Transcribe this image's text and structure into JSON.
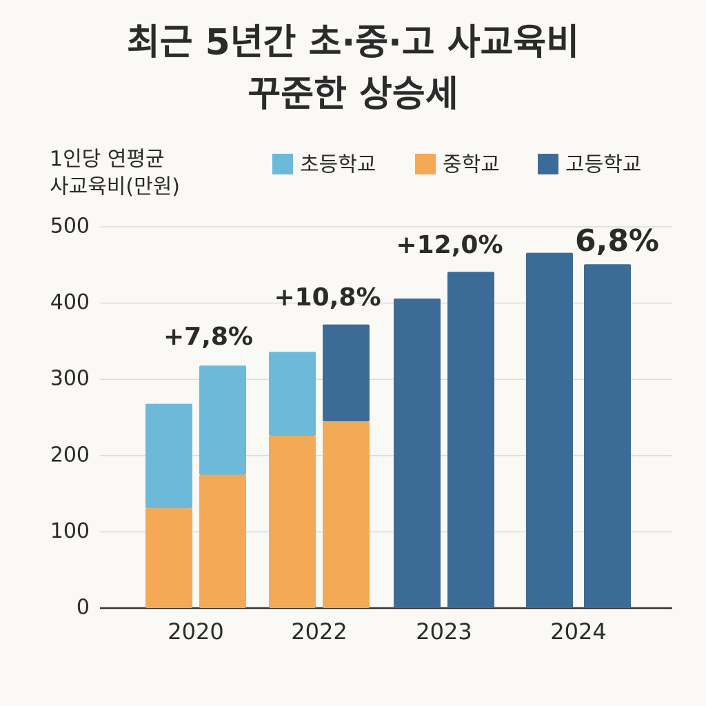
{
  "chart_data": {
    "type": "bar",
    "stacked": true,
    "title": [
      "최근 5년간 초·중·고 사교육비",
      "꾸준한 상승세"
    ],
    "y_label": [
      "1인당 연평균",
      "사교육비(만원)"
    ],
    "categories": [
      "2020",
      null,
      "2022",
      null,
      "2023",
      null,
      "2024",
      null
    ],
    "series": [
      {
        "name": "초등학교",
        "color": "#6db9da",
        "values": [
          137,
          143,
          110,
          null,
          null,
          null,
          null,
          null
        ]
      },
      {
        "name": "중학교",
        "color": "#f4a956",
        "values": [
          131,
          175,
          226,
          245,
          null,
          null,
          null,
          null
        ]
      },
      {
        "name": "고등학교",
        "color": "#3d6b97",
        "values": [
          null,
          null,
          null,
          127,
          406,
          441,
          466,
          451
        ]
      }
    ],
    "annotations": [
      "+7,8%",
      "+10,8%",
      "+12,0%",
      "6,8%"
    ],
    "ylim": [
      0,
      500
    ],
    "yticks": [
      0,
      100,
      200,
      300,
      400,
      500
    ],
    "grid": true
  }
}
